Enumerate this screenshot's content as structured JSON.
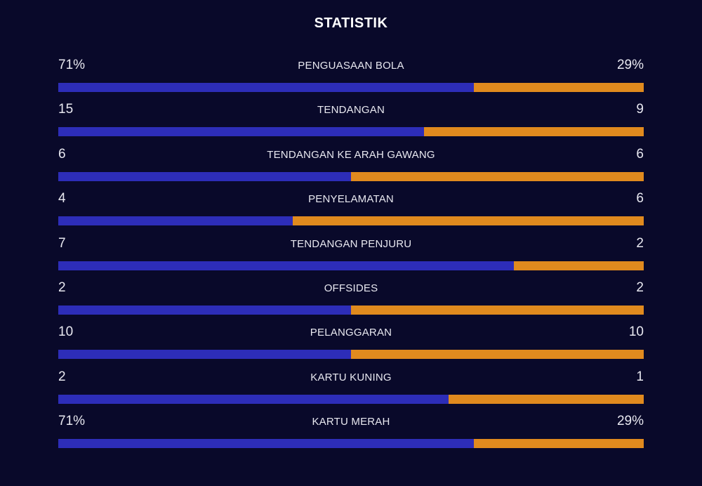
{
  "title": "STATISTIK",
  "colors": {
    "background": "#09092a",
    "home_bar": "#2d2db8",
    "away_bar": "#e08a1e"
  },
  "stats": [
    {
      "label": "PENGUASAAN BOLA",
      "home": "71%",
      "away": "29%",
      "home_share": 0.71
    },
    {
      "label": "TENDANGAN",
      "home": "15",
      "away": "9",
      "home_share": 0.625
    },
    {
      "label": "TENDANGAN KE ARAH GAWANG",
      "home": "6",
      "away": "6",
      "home_share": 0.5
    },
    {
      "label": "PENYELAMATAN",
      "home": "4",
      "away": "6",
      "home_share": 0.4
    },
    {
      "label": "TENDANGAN PENJURU",
      "home": "7",
      "away": "2",
      "home_share": 0.778
    },
    {
      "label": "OFFSIDES",
      "home": "2",
      "away": "2",
      "home_share": 0.5
    },
    {
      "label": "PELANGGARAN",
      "home": "10",
      "away": "10",
      "home_share": 0.5
    },
    {
      "label": "KARTU KUNING",
      "home": "2",
      "away": "1",
      "home_share": 0.667
    },
    {
      "label": "KARTU MERAH",
      "home": "71%",
      "away": "29%",
      "home_share": 0.71
    }
  ]
}
